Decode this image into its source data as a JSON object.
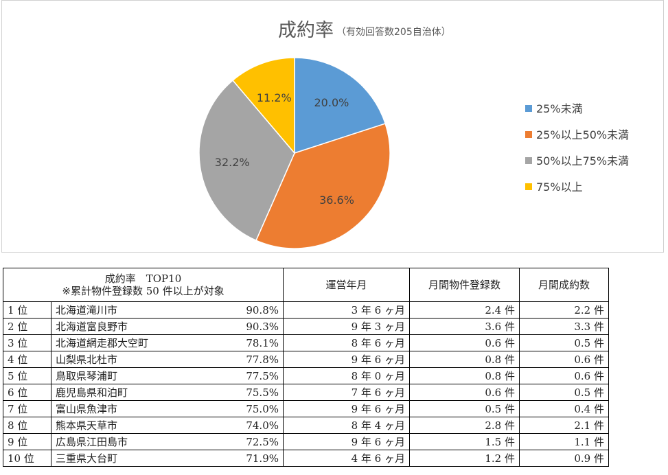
{
  "chart_data": {
    "type": "pie",
    "title": "成約率",
    "subtitle": "（有効回答数205自治体）",
    "slices": [
      {
        "name": "25%未満",
        "value": 20.0,
        "label": "20.0%",
        "color": "#5B9BD5"
      },
      {
        "name": "25%以上50%未満",
        "value": 36.6,
        "label": "36.6%",
        "color": "#ED7D31"
      },
      {
        "name": "50%以上75%未満",
        "value": 32.2,
        "label": "32.2%",
        "color": "#A5A5A5"
      },
      {
        "name": "75%以上",
        "value": 11.2,
        "label": "11.2%",
        "color": "#FFC000"
      }
    ],
    "legend_position": "right"
  },
  "table": {
    "header": {
      "title_line1": "成約率　TOP10",
      "title_line2": "※累計物件登録数 50 件以上が対象",
      "col_period": "運営年月",
      "col_monthly_listings": "月間物件登録数",
      "col_monthly_contracts": "月間成約数"
    },
    "rows": [
      {
        "rank": "1 位",
        "name": "北海道滝川市",
        "rate": "90.8%",
        "period": "3 年 6 ヶ月",
        "listings": "2.4 件",
        "contracts": "2.2 件"
      },
      {
        "rank": "2 位",
        "name": "北海道富良野市",
        "rate": "90.3%",
        "period": "9 年 3 ヶ月",
        "listings": "3.6 件",
        "contracts": "3.3 件"
      },
      {
        "rank": "3 位",
        "name": "北海道網走郡大空町",
        "rate": "78.1%",
        "period": "8 年 6 ヶ月",
        "listings": "0.6 件",
        "contracts": "0.5 件"
      },
      {
        "rank": "4 位",
        "name": "山梨県北杜市",
        "rate": "77.8%",
        "period": "9 年 6 ヶ月",
        "listings": "0.8 件",
        "contracts": "0.6 件"
      },
      {
        "rank": "5 位",
        "name": "鳥取県琴浦町",
        "rate": "77.5%",
        "period": "8 年 0 ヶ月",
        "listings": "0.8 件",
        "contracts": "0.6 件"
      },
      {
        "rank": "6 位",
        "name": "鹿児島県和泊町",
        "rate": "75.5%",
        "period": "7 年 6 ヶ月",
        "listings": "0.6 件",
        "contracts": "0.5 件"
      },
      {
        "rank": "7 位",
        "name": "富山県魚津市",
        "rate": "75.0%",
        "period": "9 年 6 ヶ月",
        "listings": "0.5 件",
        "contracts": "0.4 件"
      },
      {
        "rank": "8 位",
        "name": "熊本県天草市",
        "rate": "74.0%",
        "period": "8 年 4 ヶ月",
        "listings": "2.8 件",
        "contracts": "2.1 件"
      },
      {
        "rank": "9 位",
        "name": "広島県江田島市",
        "rate": "72.5%",
        "period": "9 年 6 ヶ月",
        "listings": "1.5 件",
        "contracts": "1.1 件"
      },
      {
        "rank": "10 位",
        "name": "三重県大台町",
        "rate": "71.9%",
        "period": "4 年 6 ヶ月",
        "listings": "1.2 件",
        "contracts": "0.9 件"
      }
    ]
  }
}
